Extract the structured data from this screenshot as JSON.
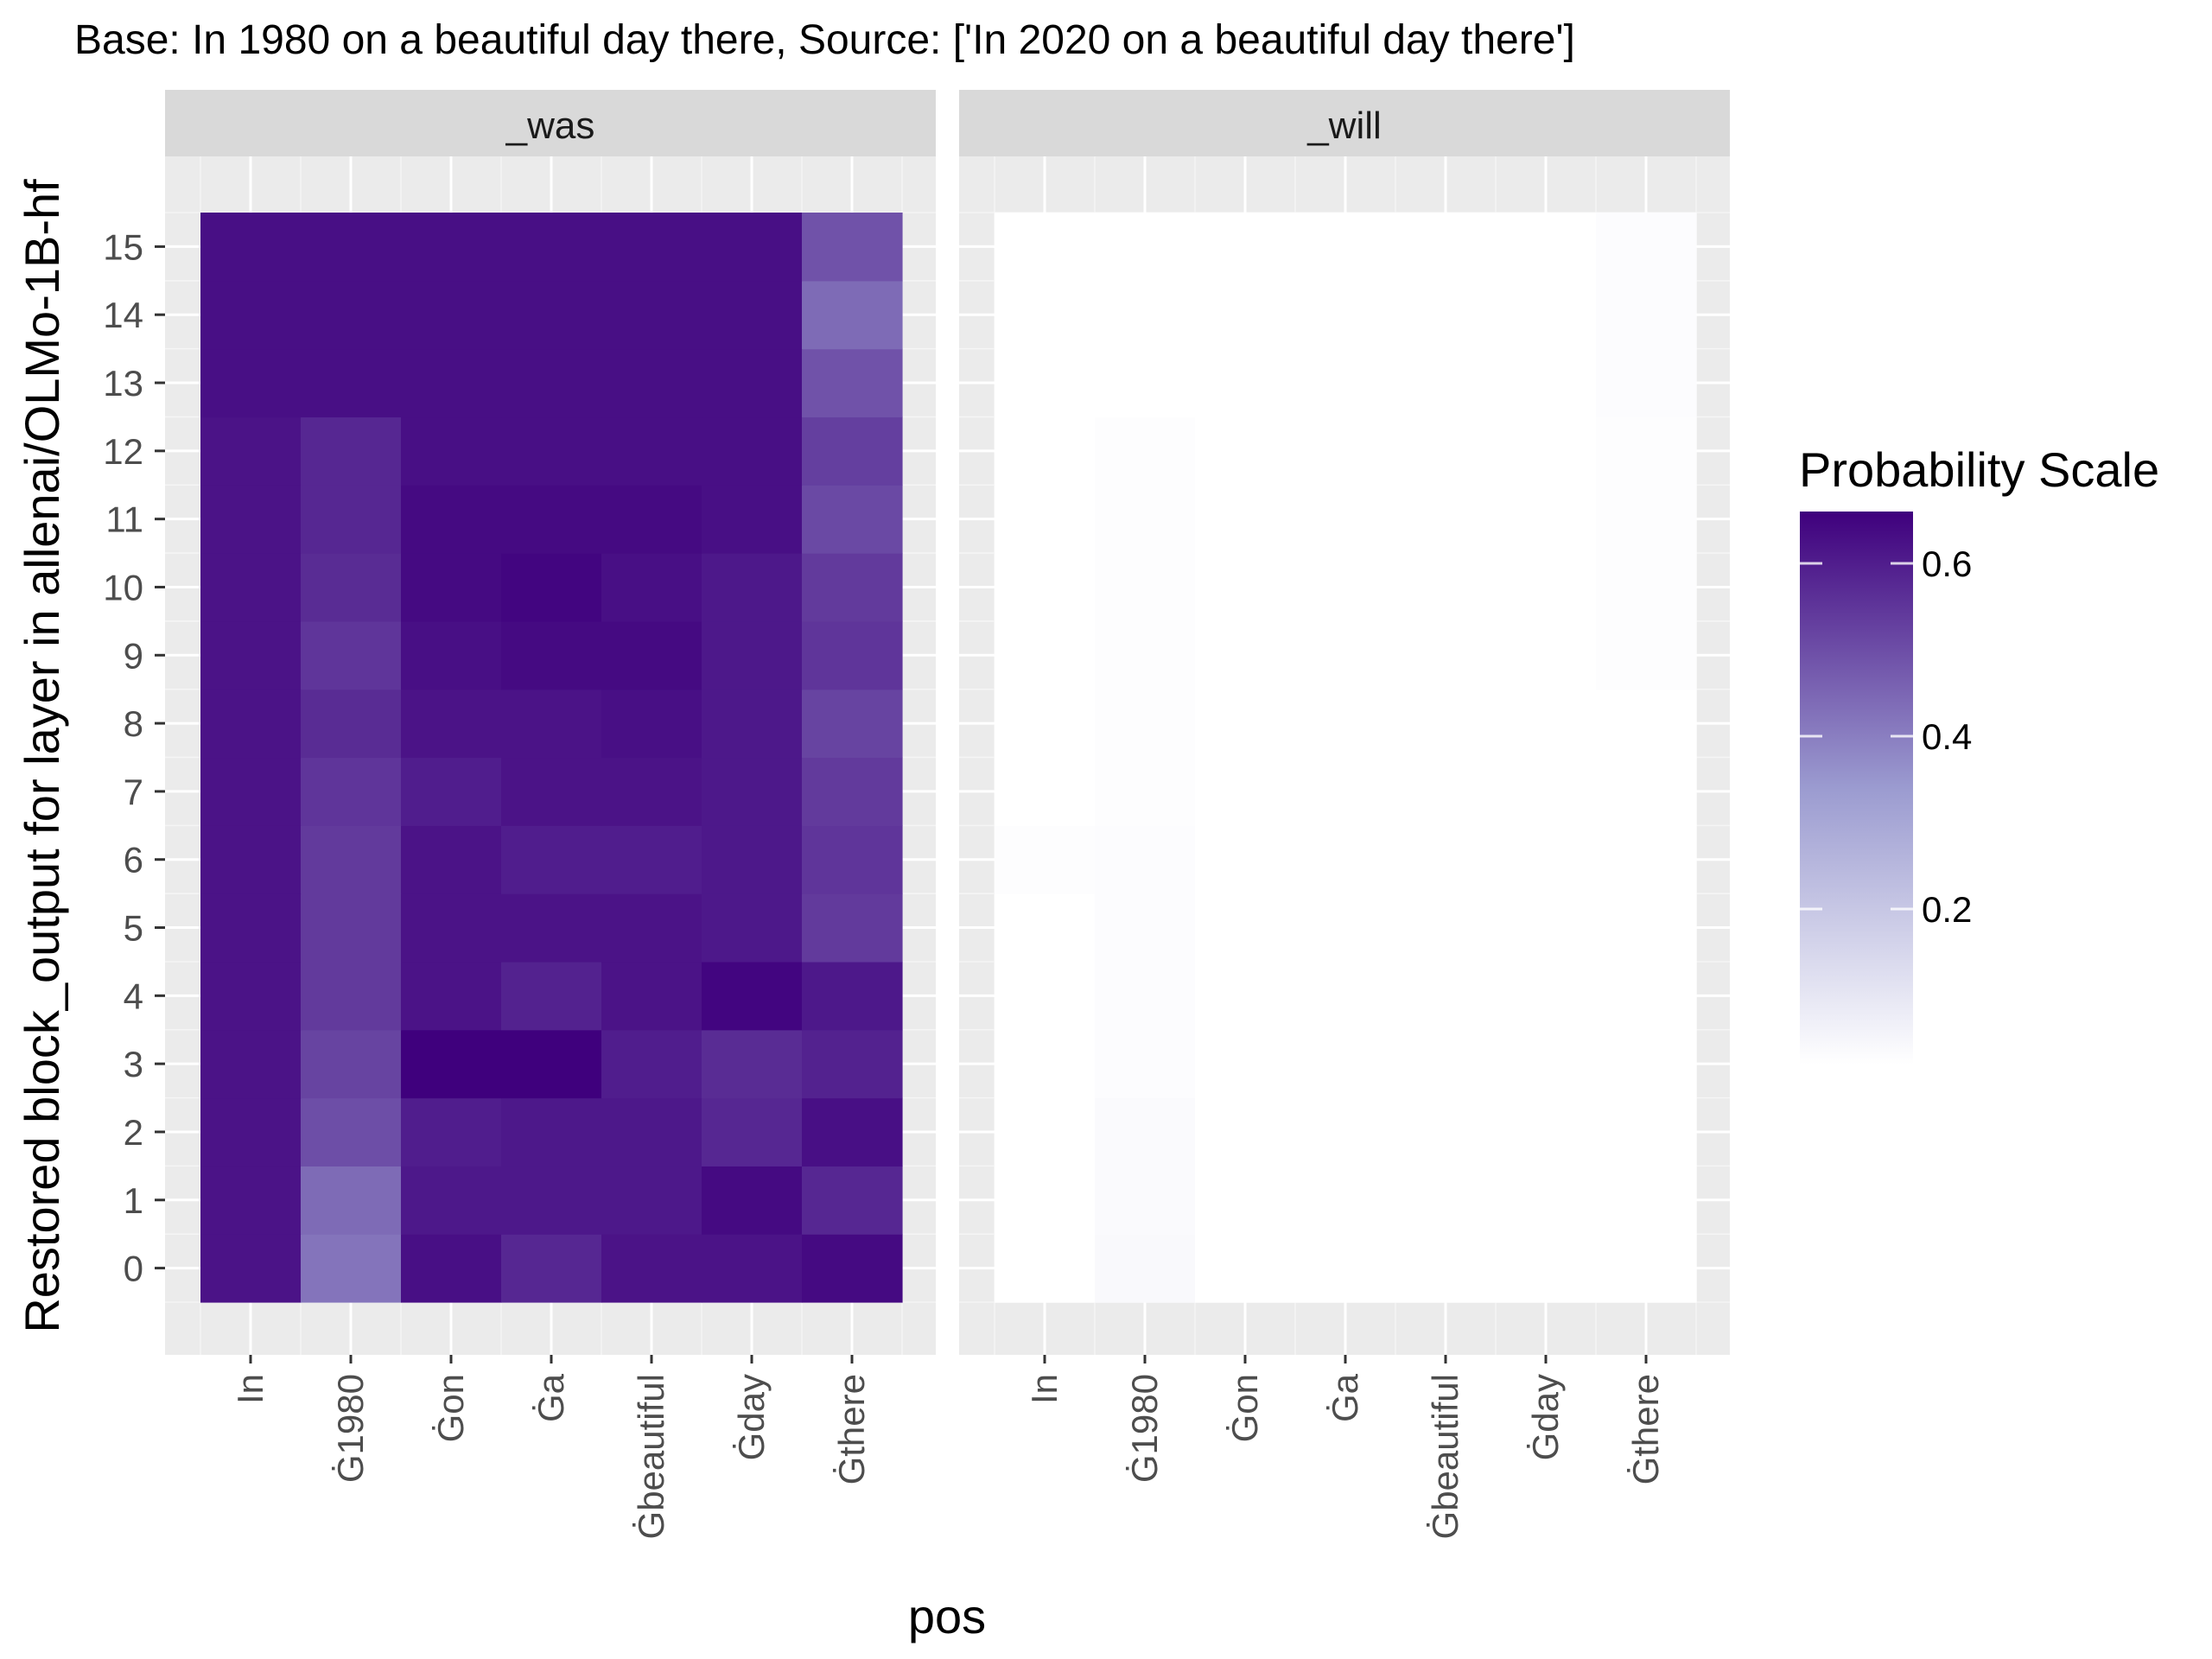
{
  "chart_data": {
    "type": "heatmap",
    "title": "Base: In 1980 on a beautiful day there, Source: ['In 2020 on a beautiful day there']",
    "xlabel": "pos",
    "ylabel": "Restored block_output for layer in allenai/OLMo-1B-hf",
    "x_categories": [
      "In",
      "Ġ1980",
      "Ġon",
      "Ġa",
      "Ġbeautiful",
      "Ġday",
      "Ġthere"
    ],
    "y_categories": [
      0,
      1,
      2,
      3,
      4,
      5,
      6,
      7,
      8,
      9,
      10,
      11,
      12,
      13,
      14,
      15
    ],
    "facets": [
      {
        "label": "_was",
        "values": [
          [
            0.62,
            0.42,
            0.63,
            0.58,
            0.62,
            0.62,
            0.64
          ],
          [
            0.62,
            0.44,
            0.61,
            0.61,
            0.61,
            0.64,
            0.58
          ],
          [
            0.62,
            0.5,
            0.6,
            0.61,
            0.61,
            0.58,
            0.63
          ],
          [
            0.62,
            0.52,
            0.66,
            0.66,
            0.6,
            0.57,
            0.59
          ],
          [
            0.62,
            0.54,
            0.62,
            0.59,
            0.62,
            0.65,
            0.61
          ],
          [
            0.62,
            0.54,
            0.62,
            0.62,
            0.62,
            0.61,
            0.54
          ],
          [
            0.62,
            0.54,
            0.62,
            0.6,
            0.6,
            0.61,
            0.55
          ],
          [
            0.62,
            0.55,
            0.6,
            0.62,
            0.62,
            0.61,
            0.54
          ],
          [
            0.62,
            0.57,
            0.62,
            0.62,
            0.63,
            0.61,
            0.52
          ],
          [
            0.62,
            0.55,
            0.63,
            0.64,
            0.64,
            0.61,
            0.55
          ],
          [
            0.62,
            0.57,
            0.64,
            0.65,
            0.63,
            0.61,
            0.54
          ],
          [
            0.62,
            0.58,
            0.64,
            0.64,
            0.64,
            0.63,
            0.51
          ],
          [
            0.62,
            0.58,
            0.63,
            0.63,
            0.63,
            0.63,
            0.53
          ],
          [
            0.63,
            0.63,
            0.63,
            0.63,
            0.63,
            0.63,
            0.49
          ],
          [
            0.63,
            0.63,
            0.63,
            0.63,
            0.63,
            0.63,
            0.44
          ],
          [
            0.63,
            0.63,
            0.63,
            0.63,
            0.63,
            0.63,
            0.49
          ]
        ]
      },
      {
        "label": "_will",
        "values": [
          [
            0.02,
            0.04,
            0.02,
            0.02,
            0.02,
            0.02,
            0.02
          ],
          [
            0.02,
            0.035,
            0.02,
            0.02,
            0.02,
            0.02,
            0.02
          ],
          [
            0.02,
            0.035,
            0.02,
            0.02,
            0.02,
            0.02,
            0.02
          ],
          [
            0.02,
            0.03,
            0.02,
            0.02,
            0.02,
            0.02,
            0.02
          ],
          [
            0.02,
            0.03,
            0.02,
            0.02,
            0.02,
            0.02,
            0.02
          ],
          [
            0.02,
            0.03,
            0.02,
            0.02,
            0.02,
            0.02,
            0.02
          ],
          [
            0.025,
            0.03,
            0.02,
            0.02,
            0.02,
            0.02,
            0.02
          ],
          [
            0.02,
            0.028,
            0.02,
            0.02,
            0.02,
            0.02,
            0.02
          ],
          [
            0.02,
            0.028,
            0.02,
            0.02,
            0.02,
            0.02,
            0.02
          ],
          [
            0.02,
            0.028,
            0.02,
            0.02,
            0.02,
            0.02,
            0.025
          ],
          [
            0.02,
            0.028,
            0.02,
            0.02,
            0.02,
            0.02,
            0.025
          ],
          [
            0.02,
            0.028,
            0.02,
            0.02,
            0.02,
            0.02,
            0.025
          ],
          [
            0.02,
            0.025,
            0.02,
            0.02,
            0.02,
            0.02,
            0.025
          ],
          [
            0.02,
            0.02,
            0.02,
            0.02,
            0.02,
            0.02,
            0.03
          ],
          [
            0.02,
            0.02,
            0.02,
            0.02,
            0.02,
            0.02,
            0.03
          ],
          [
            0.02,
            0.02,
            0.02,
            0.02,
            0.02,
            0.02,
            0.03
          ]
        ]
      }
    ],
    "legend": {
      "title": "Probability Scale",
      "ticks": [
        0.2,
        0.4,
        0.6
      ],
      "tick_labels": [
        "0.2",
        "0.4",
        "0.6"
      ],
      "range": [
        0.02,
        0.66
      ],
      "low_color": "#ffffff",
      "mid_color": "#9b9bd0",
      "high_color": "#3f007d",
      "placement": "right"
    },
    "grid": true
  }
}
